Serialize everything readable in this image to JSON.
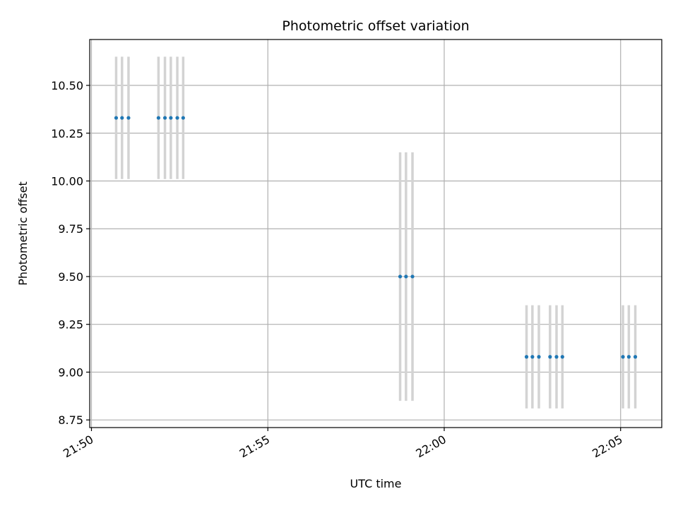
{
  "chart_data": {
    "type": "scatter",
    "title": "Photometric offset variation",
    "xlabel": "UTC time",
    "ylabel": "Photometric offset",
    "x_ticks": [
      "21:50",
      "21:55",
      "22:00",
      "22:05"
    ],
    "y_ticks": [
      "8.75",
      "9.00",
      "9.25",
      "9.50",
      "9.75",
      "10.00",
      "10.25",
      "10.50"
    ],
    "xlim": [
      "21:49:57",
      "22:06:10"
    ],
    "ylim": [
      8.71,
      10.74
    ],
    "grid": true,
    "series": [
      {
        "points": [
          {
            "x": "21:50:42",
            "y": 10.33,
            "err": 0.32
          },
          {
            "x": "21:50:52",
            "y": 10.33,
            "err": 0.32
          },
          {
            "x": "21:51:03",
            "y": 10.33,
            "err": 0.32
          },
          {
            "x": "21:51:54",
            "y": 10.33,
            "err": 0.32
          },
          {
            "x": "21:52:05",
            "y": 10.33,
            "err": 0.32
          },
          {
            "x": "21:52:15",
            "y": 10.33,
            "err": 0.32
          },
          {
            "x": "21:52:26",
            "y": 10.33,
            "err": 0.32
          },
          {
            "x": "21:52:36",
            "y": 10.33,
            "err": 0.32
          },
          {
            "x": "21:58:45",
            "y": 9.5,
            "err": 0.65
          },
          {
            "x": "21:58:55",
            "y": 9.5,
            "err": 0.65
          },
          {
            "x": "21:59:06",
            "y": 9.5,
            "err": 0.65
          },
          {
            "x": "22:02:20",
            "y": 9.08,
            "err": 0.27
          },
          {
            "x": "22:02:30",
            "y": 9.08,
            "err": 0.27
          },
          {
            "x": "22:02:41",
            "y": 9.08,
            "err": 0.27
          },
          {
            "x": "22:03:00",
            "y": 9.08,
            "err": 0.27
          },
          {
            "x": "22:03:11",
            "y": 9.08,
            "err": 0.27
          },
          {
            "x": "22:03:21",
            "y": 9.08,
            "err": 0.27
          },
          {
            "x": "22:05:04",
            "y": 9.08,
            "err": 0.27
          },
          {
            "x": "22:05:14",
            "y": 9.08,
            "err": 0.27
          },
          {
            "x": "22:05:25",
            "y": 9.08,
            "err": 0.27
          }
        ]
      }
    ],
    "colors": {
      "marker": "#1f77b4",
      "errorbar": "#d3d3d3",
      "grid": "#b0b0b0",
      "axes": "#000000"
    }
  }
}
